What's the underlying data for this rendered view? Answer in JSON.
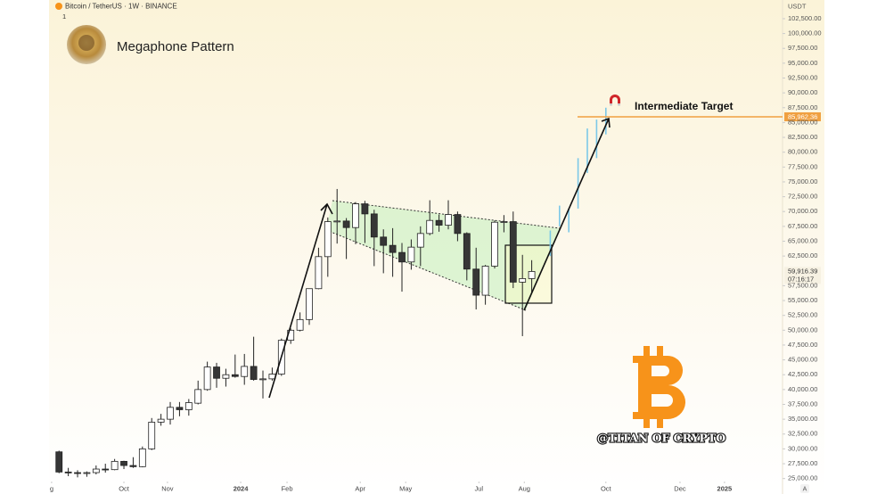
{
  "chart_data": {
    "type": "candlestick",
    "symbol": "Bitcoin / TetherUS · 1W · BINANCE",
    "interval_badge": "1",
    "title": "Megaphone Pattern",
    "currency": "USDT",
    "watermark": "@TITAN OF CRYPTO",
    "auto_scale_button": "A",
    "up_color": "#ffffff",
    "down_color": "#363636",
    "x": [
      -7,
      -6,
      -5,
      -4,
      -3,
      -2,
      -1,
      0,
      1,
      2,
      3,
      4,
      5,
      6,
      7,
      8,
      9,
      10,
      11,
      12,
      13,
      14,
      15,
      16,
      17,
      18,
      19,
      20,
      21,
      22,
      23,
      24,
      25,
      26,
      27,
      28,
      29,
      30,
      31,
      32,
      33,
      34,
      35,
      36,
      37,
      38,
      39,
      40,
      41,
      42,
      43,
      44
    ],
    "open": [
      29500,
      26100,
      26000,
      25900,
      26000,
      26600,
      26500,
      27900,
      27200,
      27000,
      30000,
      34500,
      35000,
      37000,
      36600,
      37700,
      40000,
      43800,
      41900,
      42500,
      42200,
      43900,
      41700,
      41800,
      42600,
      48300,
      50000,
      51800,
      57000,
      62400,
      68300,
      68400,
      67300,
      71300,
      69600,
      65700,
      64300,
      63100,
      61500,
      64000,
      66300,
      68500,
      67700,
      69500,
      66300,
      60300,
      55900,
      60800,
      68200,
      68300,
      58100,
      58700
    ],
    "high": [
      29700,
      26800,
      26400,
      26200,
      27200,
      27500,
      28300,
      28000,
      28600,
      30400,
      35200,
      35900,
      37900,
      37900,
      38400,
      41500,
      44700,
      44500,
      43500,
      45900,
      46000,
      48900,
      43200,
      43700,
      48600,
      50300,
      53000,
      57000,
      63900,
      69000,
      73800,
      68900,
      71600,
      71800,
      70300,
      67000,
      67200,
      64700,
      65300,
      67500,
      71900,
      69500,
      71900,
      70000,
      66500,
      63900,
      61000,
      68500,
      69400,
      70000,
      62700,
      61800
    ],
    "low": [
      25900,
      25400,
      25200,
      25300,
      25700,
      26000,
      26400,
      26600,
      26800,
      26900,
      29800,
      33900,
      34100,
      35500,
      35600,
      37500,
      39800,
      40300,
      40500,
      42000,
      40800,
      41500,
      38500,
      41500,
      42300,
      47700,
      49800,
      50900,
      56900,
      59000,
      64600,
      62000,
      64500,
      64700,
      60800,
      59600,
      59000,
      56500,
      60200,
      60800,
      66000,
      66600,
      67000,
      65000,
      58400,
      53500,
      54300,
      60400,
      66500,
      57100,
      49000,
      56200
    ],
    "close": [
      26100,
      26000,
      25900,
      26000,
      26600,
      26500,
      27900,
      27200,
      27000,
      30000,
      34500,
      35000,
      37000,
      36600,
      37800,
      40000,
      43800,
      41900,
      42500,
      42200,
      43900,
      41700,
      41800,
      42600,
      48300,
      50000,
      51800,
      57000,
      62400,
      68300,
      68400,
      67300,
      71300,
      69600,
      65700,
      64300,
      63100,
      61500,
      64000,
      66300,
      68500,
      67700,
      69500,
      66300,
      60300,
      55900,
      60800,
      68200,
      68300,
      58100,
      58700,
      59900
    ],
    "projection": {
      "color": "#7cc8e8",
      "x": [
        46,
        47,
        48,
        49,
        50,
        51,
        52
      ],
      "low": [
        62500,
        67500,
        66500,
        70500,
        76500,
        79000,
        83000
      ],
      "high": [
        66800,
        71000,
        70500,
        79000,
        84000,
        85500,
        87500
      ]
    },
    "target": {
      "label": "Intermediate Target",
      "value": 85962.36,
      "value_label": "85,962.36",
      "color": "#f0a040"
    },
    "last_price": {
      "value": 59916.39,
      "label": "59,916.39",
      "countdown": "07:16:17"
    },
    "xlim": [
      -8.08,
      71.06
    ],
    "xticks": [
      {
        "value": -7.8,
        "label": "g"
      },
      {
        "value": 0,
        "label": "Oct"
      },
      {
        "value": 4.7,
        "label": "Nov"
      },
      {
        "value": 12.6,
        "label": "2024"
      },
      {
        "value": 17.6,
        "label": "Feb"
      },
      {
        "value": 25.5,
        "label": "Apr"
      },
      {
        "value": 30.4,
        "label": "May"
      },
      {
        "value": 38.3,
        "label": "Jul"
      },
      {
        "value": 43.2,
        "label": "Aug"
      },
      {
        "value": 52.0,
        "label": "Oct"
      },
      {
        "value": 60.0,
        "label": "Dec"
      },
      {
        "value": 64.8,
        "label": "2025"
      }
    ],
    "ylim": [
      24500,
      105650
    ],
    "yticks": [
      {
        "value": 25000,
        "label": "25,000.00"
      },
      {
        "value": 27500,
        "label": "27,500.00"
      },
      {
        "value": 30000,
        "label": "30,000.00"
      },
      {
        "value": 32500,
        "label": "32,500.00"
      },
      {
        "value": 35000,
        "label": "35,000.00"
      },
      {
        "value": 37500,
        "label": "37,500.00"
      },
      {
        "value": 40000,
        "label": "40,000.00"
      },
      {
        "value": 42500,
        "label": "42,500.00"
      },
      {
        "value": 45000,
        "label": "45,000.00"
      },
      {
        "value": 47500,
        "label": "47,500.00"
      },
      {
        "value": 50000,
        "label": "50,000.00"
      },
      {
        "value": 52500,
        "label": "52,500.00"
      },
      {
        "value": 55000,
        "label": "55,000.00"
      },
      {
        "value": 57500,
        "label": "57,500.00"
      },
      {
        "value": 62500,
        "label": "62,500.00"
      },
      {
        "value": 65000,
        "label": "65,000.00"
      },
      {
        "value": 67500,
        "label": "67,500.00"
      },
      {
        "value": 70000,
        "label": "70,000.00"
      },
      {
        "value": 72500,
        "label": "72,500.00"
      },
      {
        "value": 75000,
        "label": "75,000.00"
      },
      {
        "value": 77500,
        "label": "77,500.00"
      },
      {
        "value": 80000,
        "label": "80,000.00"
      },
      {
        "value": 82500,
        "label": "82,500.00"
      },
      {
        "value": 85000,
        "label": "85,000.00"
      },
      {
        "value": 87500,
        "label": "87,500.00"
      },
      {
        "value": 90000,
        "label": "90,000.00"
      },
      {
        "value": 92500,
        "label": "92,500.00"
      },
      {
        "value": 95000,
        "label": "95,000.00"
      },
      {
        "value": 97500,
        "label": "97,500.00"
      },
      {
        "value": 100000,
        "label": "100,000.00"
      },
      {
        "value": 102500,
        "label": "102,500.00"
      }
    ],
    "grid": false
  }
}
